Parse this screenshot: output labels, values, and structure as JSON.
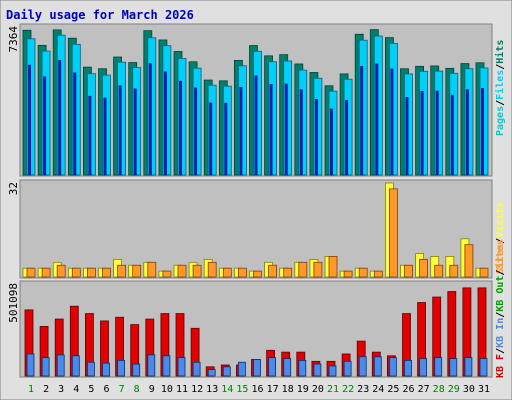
{
  "title": "Daily usage for March 2026",
  "colors": {
    "frame_bg": "#e0e0e0",
    "plot_bg": "#c0c0c0",
    "title": "#0000c0",
    "pages": "#00cccc",
    "files": "#00d0f8",
    "hits": "#00806a",
    "pages_dark": "#0000a0",
    "sites": "#ff9a2a",
    "visits": "#ffff40",
    "kb_in": "#4a8ae8",
    "kb_out": "#00a000",
    "kb_f": "#e00000",
    "day_weekday": "#000000",
    "day_weekend": "#008000"
  },
  "chart_data": [
    {
      "type": "bar",
      "panel": "hits-files-pages",
      "ymax_label": "7364",
      "ylim": [
        0,
        7364
      ],
      "right_label": {
        "parts": [
          "Pages",
          "Files",
          "Hits"
        ],
        "sep": "/"
      },
      "series": [
        {
          "name": "Hits",
          "values": [
            7300,
            6540,
            7320,
            6900,
            5440,
            5360,
            5950,
            5670,
            7280,
            6810,
            6230,
            5710,
            4790,
            4750,
            5780,
            6530,
            6010,
            6070,
            5600,
            5170,
            4500,
            5100,
            7100,
            7330,
            6930,
            5360,
            5480,
            5500,
            5380,
            5620,
            5660
          ]
        },
        {
          "name": "Files",
          "values": [
            6870,
            6250,
            7050,
            6590,
            5110,
            5040,
            5690,
            5420,
            6920,
            6520,
            5880,
            5390,
            4530,
            4480,
            5510,
            6240,
            5710,
            5750,
            5290,
            4880,
            4230,
            4830,
            6800,
            7010,
            6640,
            5100,
            5230,
            5240,
            5130,
            5360,
            5400
          ]
        },
        {
          "name": "Pages",
          "values": [
            5560,
            4970,
            5800,
            5170,
            3990,
            3900,
            4520,
            4360,
            5640,
            5220,
            4750,
            4410,
            3650,
            3640,
            4440,
            5020,
            4590,
            4610,
            4320,
            3830,
            3350,
            3780,
            5500,
            5620,
            5370,
            3930,
            4240,
            4250,
            4040,
            4320,
            4390
          ]
        }
      ]
    },
    {
      "type": "bar",
      "panel": "visits-sites",
      "ymax_label": "32",
      "ylim": [
        0,
        32
      ],
      "right_label": {
        "parts": [
          "Sites",
          "Visits"
        ],
        "sep": "/"
      },
      "series": [
        {
          "name": "Visits",
          "values": [
            3,
            3,
            5,
            3,
            3,
            3,
            6,
            4,
            5,
            2,
            4,
            5,
            6,
            3,
            3,
            2,
            5,
            3,
            5,
            6,
            7,
            2,
            3,
            2,
            32,
            4,
            8,
            7,
            7,
            13,
            3
          ]
        },
        {
          "name": "Sites",
          "values": [
            3,
            3,
            4,
            3,
            3,
            3,
            4,
            4,
            5,
            2,
            4,
            4,
            5,
            3,
            3,
            2,
            4,
            3,
            5,
            5,
            7,
            2,
            3,
            2,
            30,
            4,
            6,
            4,
            4,
            11,
            3
          ]
        }
      ]
    },
    {
      "type": "bar",
      "panel": "kbytes",
      "ymax_label": "501098",
      "ylim": [
        0,
        501098
      ],
      "right_label": {
        "parts": [
          "KB F",
          "KB In",
          "KB Out",
          "Sites"
        ],
        "sep": "/"
      },
      "series": [
        {
          "name": "KB F",
          "values": [
            360000,
            270000,
            310000,
            380000,
            340000,
            300000,
            320000,
            280000,
            310000,
            340000,
            340000,
            260000,
            50000,
            60000,
            60000,
            90000,
            140000,
            130000,
            130000,
            80000,
            80000,
            120000,
            190000,
            130000,
            110000,
            340000,
            400000,
            430000,
            460000,
            480000,
            480000
          ]
        },
        {
          "name": "KB In",
          "values": [
            120000,
            100000,
            115000,
            110000,
            75000,
            70000,
            85000,
            65000,
            115000,
            110000,
            100000,
            75000,
            35000,
            50000,
            75000,
            90000,
            100000,
            95000,
            85000,
            65000,
            55000,
            80000,
            105000,
            105000,
            100000,
            85000,
            95000,
            100000,
            95000,
            100000,
            95000
          ]
        }
      ]
    }
  ],
  "x_axis": {
    "days": [
      "1",
      "2",
      "3",
      "4",
      "5",
      "6",
      "7",
      "8",
      "9",
      "10",
      "11",
      "12",
      "13",
      "14",
      "15",
      "16",
      "17",
      "18",
      "19",
      "20",
      "21",
      "22",
      "23",
      "24",
      "25",
      "26",
      "27",
      "28",
      "29",
      "30",
      "31"
    ],
    "weekend_days": [
      "1",
      "7",
      "8",
      "14",
      "15",
      "21",
      "22",
      "28",
      "29"
    ]
  }
}
